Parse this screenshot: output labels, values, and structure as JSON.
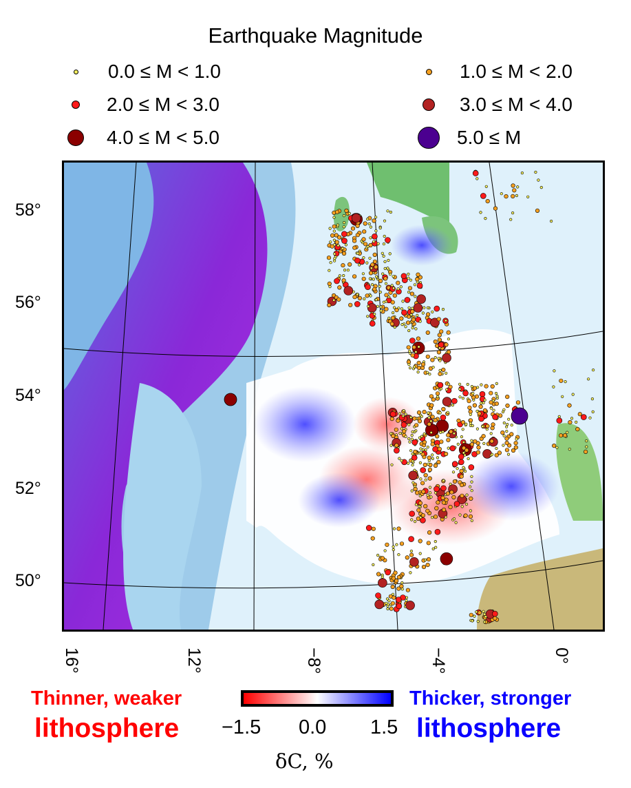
{
  "legend": {
    "title": "Earthquake Magnitude",
    "items": [
      {
        "label": "0.0 ≤ M < 1.0",
        "color": "#f5f060"
      },
      {
        "label": "1.0 ≤ M < 2.0",
        "color": "#f5a020"
      },
      {
        "label": "2.0 ≤ M < 3.0",
        "color": "#ff1a1a"
      },
      {
        "label": "3.0 ≤ M < 4.0",
        "color": "#b22222"
      },
      {
        "label": "4.0 ≤ M < 5.0",
        "color": "#8b0000"
      },
      {
        "label": "5.0 ≤ M",
        "color": "#4b0090"
      }
    ]
  },
  "axes": {
    "lat_labels": [
      "58°",
      "56°",
      "54°",
      "52°",
      "50°"
    ],
    "lon_labels": [
      "16°",
      "12°",
      "−8°",
      "−4°",
      "0°"
    ]
  },
  "colorbar": {
    "left_caption_line1": "Thinner, weaker",
    "left_caption_line2": "lithosphere",
    "right_caption_line1": "Thicker, stronger",
    "right_caption_line2": "lithosphere",
    "tick_min": "−1.5",
    "tick_mid": "0.0",
    "tick_max": "1.5",
    "label": "δC, %",
    "color_min": "#ff0000",
    "color_mid": "#ffffff",
    "color_max": "#0000ff"
  }
}
